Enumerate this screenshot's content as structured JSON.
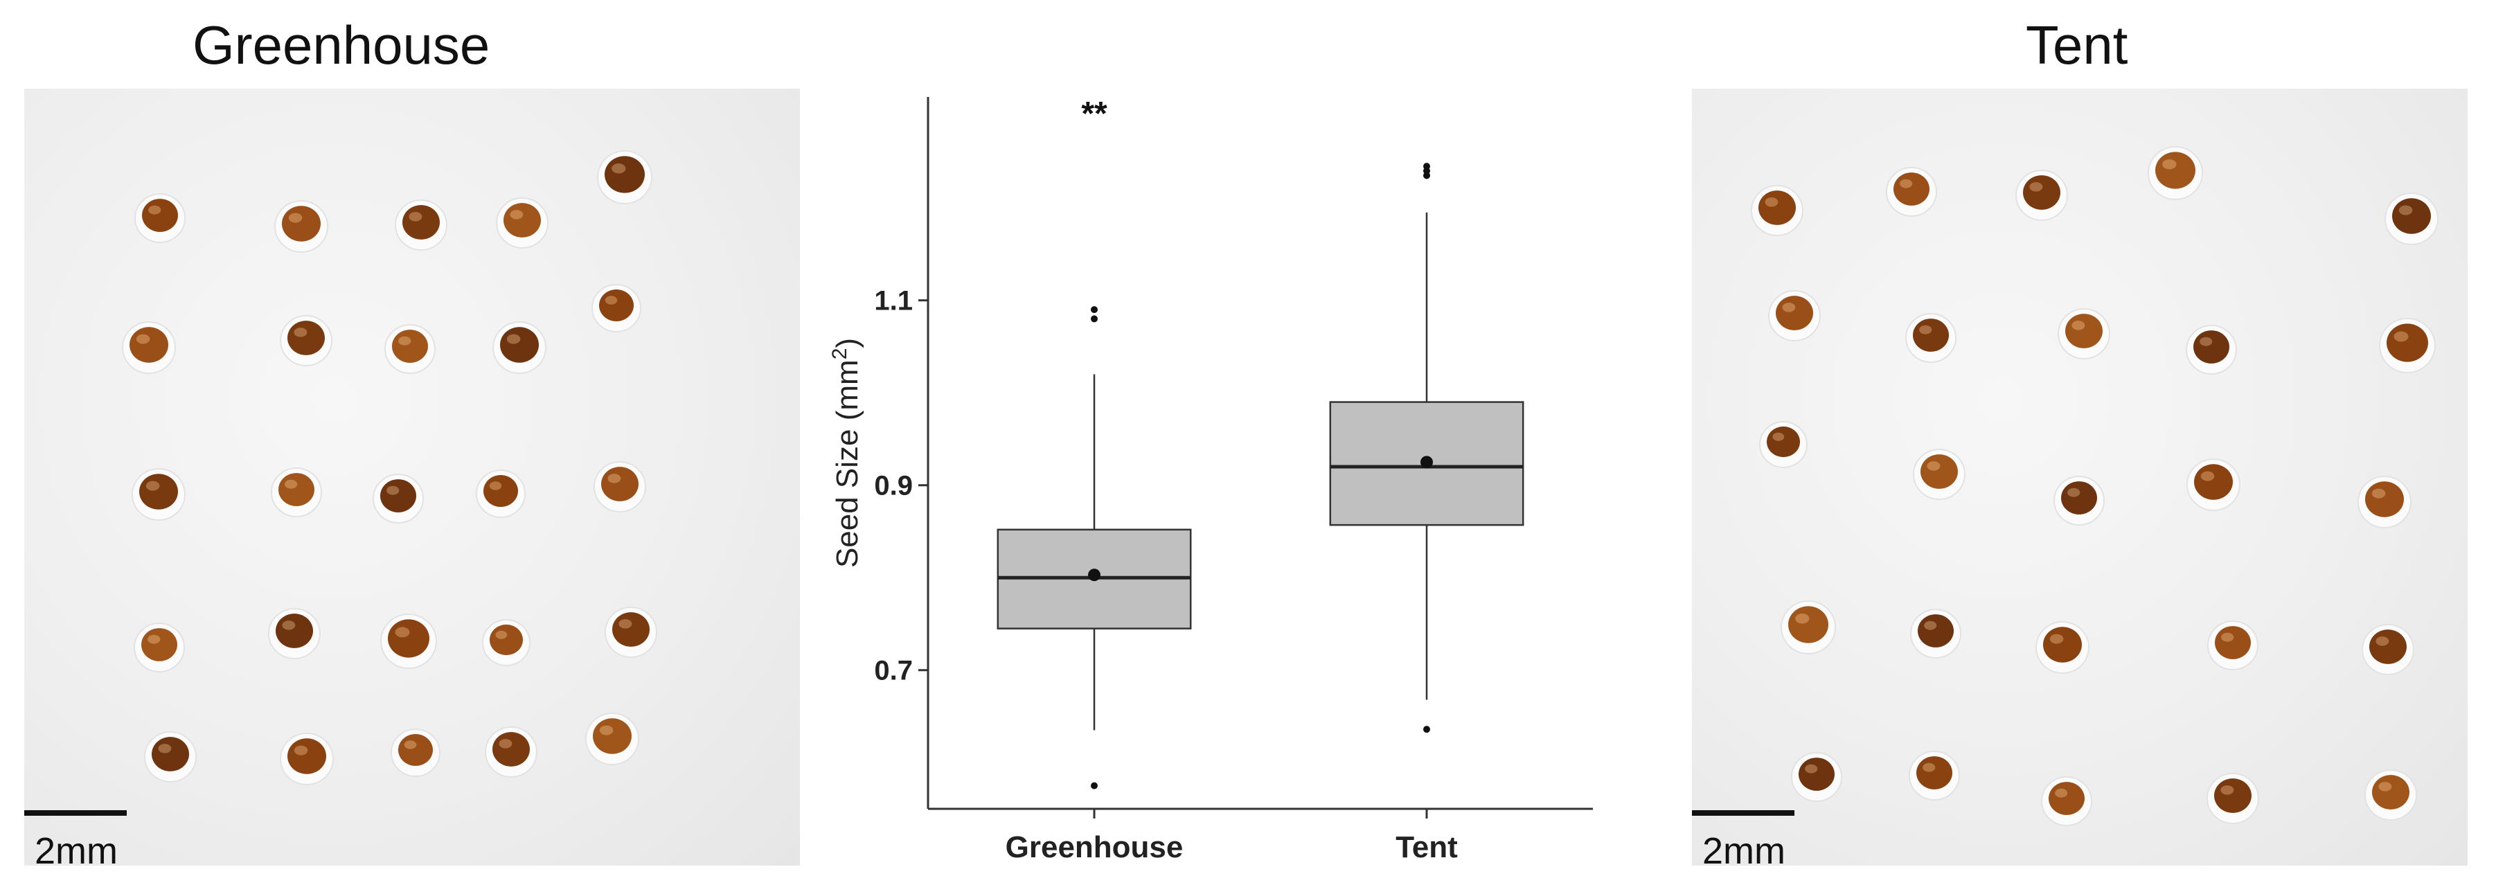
{
  "panels": {
    "left_title": "Greenhouse",
    "right_title": "Tent",
    "scale_bar_label": "2mm",
    "seed_colors": [
      "#8a4210",
      "#9b4f18",
      "#7a3a10",
      "#a0561b",
      "#6e330f"
    ],
    "seed_rows": 5,
    "left_seed_counts": [
      5,
      5,
      5,
      5,
      5
    ],
    "right_seed_counts": [
      5,
      5,
      5,
      5,
      5
    ]
  },
  "chart_data": {
    "type": "boxplot",
    "categories": [
      "Greenhouse",
      "Tent"
    ],
    "ylabel": "Seed Size (mm",
    "ylabel_sup": "2",
    "ylabel_end": ")",
    "yticks": [
      0.7,
      0.9,
      1.1
    ],
    "ylim": [
      0.55,
      1.32
    ],
    "significance": "**",
    "box_color": "#c0c0c0",
    "boxes": [
      {
        "name": "Greenhouse",
        "q1": 0.745,
        "median": 0.8,
        "q3": 0.852,
        "mean": 0.803,
        "whisker_low": 0.635,
        "whisker_high": 1.02,
        "outliers": [
          1.08,
          1.09,
          0.575
        ]
      },
      {
        "name": "Tent",
        "q1": 0.857,
        "median": 0.92,
        "q3": 0.99,
        "mean": 0.925,
        "whisker_low": 0.668,
        "whisker_high": 1.195,
        "outliers": [
          1.235,
          1.24,
          1.245,
          0.636
        ]
      }
    ]
  }
}
